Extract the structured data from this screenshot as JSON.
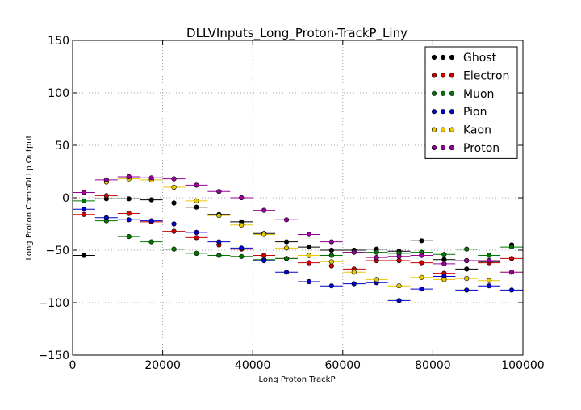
{
  "chart_data": {
    "type": "scatter",
    "title": "DLLVInputs_Long_Proton-TrackP_Liny",
    "xlabel": "Long Proton TrackP",
    "ylabel": "Long Proton CombDLLp Output",
    "xlim": [
      0,
      100000
    ],
    "ylim": [
      -150,
      150
    ],
    "x_ticks": [
      0,
      20000,
      40000,
      60000,
      80000,
      100000
    ],
    "x_tick_labels": [
      "0",
      "20000",
      "40000",
      "60000",
      "80000",
      "100000"
    ],
    "y_ticks": [
      -150,
      -100,
      -50,
      0,
      50,
      100,
      150
    ],
    "y_tick_labels": [
      "−150",
      "−100",
      "−50",
      "0",
      "50",
      "100",
      "150"
    ],
    "grid": true,
    "legend_position": "top-right",
    "bin_width": 5000,
    "x": [
      2500,
      7500,
      12500,
      17500,
      22500,
      27500,
      32500,
      37500,
      42500,
      47500,
      52500,
      57500,
      62500,
      67500,
      72500,
      77500,
      82500,
      87500,
      92500,
      97500
    ],
    "series": [
      {
        "name": "Ghost",
        "color": "#000000",
        "values": [
          -55,
          -1,
          -1,
          -2,
          -5,
          -9,
          -16,
          -23,
          -34,
          -42,
          -47,
          -50,
          -50,
          -49,
          -51,
          -41,
          -59,
          -68,
          -61,
          -45
        ]
      },
      {
        "name": "Electron",
        "color": "#cc0000",
        "values": [
          -16,
          2,
          -15,
          -23,
          -32,
          -38,
          -45,
          -49,
          -55,
          -58,
          -62,
          -65,
          -68,
          -60,
          -60,
          -62,
          -72,
          -60,
          -62,
          -58
        ]
      },
      {
        "name": "Muon",
        "color": "#007700",
        "values": [
          -3,
          -22,
          -37,
          -42,
          -49,
          -53,
          -55,
          -56,
          -59,
          -58,
          -55,
          -55,
          -52,
          -52,
          -53,
          -52,
          -54,
          -49,
          -55,
          -47
        ]
      },
      {
        "name": "Pion",
        "color": "#0000cc",
        "values": [
          -11,
          -19,
          -21,
          -22,
          -25,
          -33,
          -42,
          -48,
          -60,
          -71,
          -80,
          -84,
          -82,
          -81,
          -98,
          -87,
          -75,
          -88,
          -84,
          -88
        ]
      },
      {
        "name": "Kaon",
        "color": "#e8c800",
        "values": [
          5,
          15,
          18,
          17,
          10,
          -3,
          -17,
          -26,
          -35,
          -48,
          -55,
          -61,
          -71,
          -78,
          -84,
          -76,
          -78,
          -77,
          -79,
          -71
        ]
      },
      {
        "name": "Proton",
        "color": "#990099",
        "values": [
          5,
          17,
          20,
          19,
          18,
          12,
          6,
          0,
          -12,
          -21,
          -35,
          -42,
          -52,
          -57,
          -56,
          -55,
          -63,
          -60,
          -60,
          -71
        ]
      }
    ]
  }
}
